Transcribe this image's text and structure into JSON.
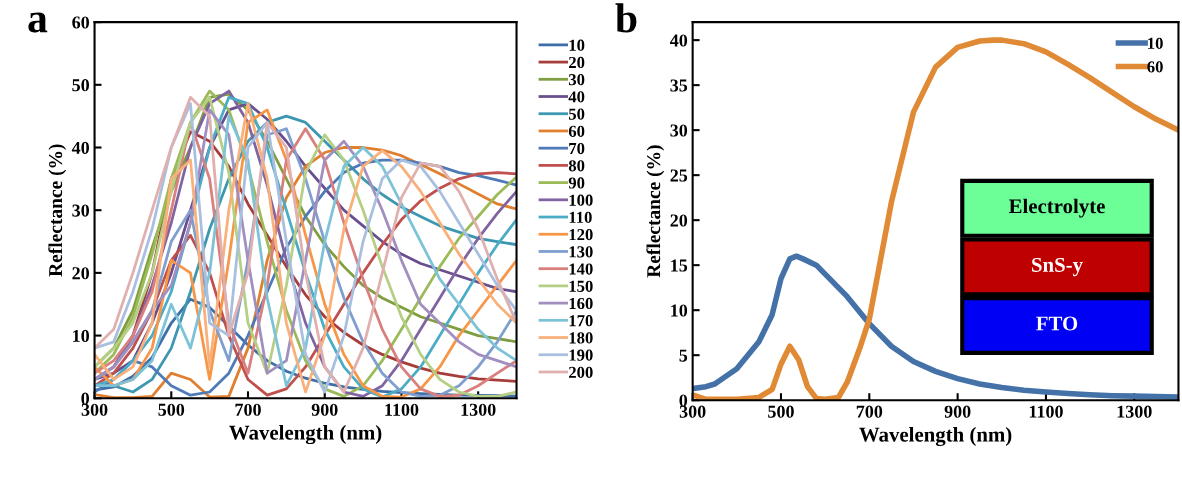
{
  "chart_data": [
    {
      "type": "line",
      "title": "a",
      "xlabel": "Wavelength (nm)",
      "ylabel": "Reflectance (%)",
      "xlim": [
        300,
        1400
      ],
      "xticks": [
        300,
        500,
        700,
        900,
        1100,
        1300
      ],
      "ylim": [
        0,
        60
      ],
      "yticks": [
        0,
        10,
        20,
        30,
        40,
        50,
        60
      ],
      "grid": false,
      "legend": "right",
      "marker": "none",
      "line_style": "solid",
      "x": [
        300,
        350,
        400,
        450,
        500,
        550,
        600,
        650,
        700,
        750,
        800,
        850,
        900,
        950,
        1000,
        1050,
        1100,
        1150,
        1200,
        1250,
        1300,
        1350,
        1400
      ],
      "series": [
        {
          "name": "10",
          "color": "#3f6fa8",
          "values": [
            1.3,
            1.8,
            3.5,
            6.5,
            12,
            15.8,
            14.5,
            11.5,
            8.5,
            6,
            4.3,
            3.2,
            2.4,
            1.8,
            1.4,
            1.1,
            0.9,
            0.75,
            0.6,
            0.5,
            0.45,
            0.4,
            0.35
          ]
        },
        {
          "name": "20",
          "color": "#a63d3a",
          "values": [
            3,
            5,
            10,
            20,
            35,
            42.5,
            41,
            37,
            31,
            26,
            21,
            16.5,
            13,
            10.5,
            8.5,
            7,
            5.8,
            4.8,
            4,
            3.5,
            3.1,
            2.9,
            2.7
          ]
        },
        {
          "name": "30",
          "color": "#7f9e3f",
          "values": [
            5,
            8,
            14,
            24,
            33,
            40,
            48,
            48.5,
            46,
            41,
            35,
            29,
            24.5,
            21,
            18,
            16,
            14.5,
            13,
            12,
            11,
            10,
            9.5,
            9
          ]
        },
        {
          "name": "40",
          "color": "#6a4f8f",
          "values": [
            3,
            4,
            6,
            12,
            20,
            30,
            40,
            46,
            47,
            44.5,
            41,
            37,
            33.5,
            30,
            27.5,
            25,
            23,
            21.5,
            20.5,
            19.5,
            18.5,
            17.5,
            17
          ]
        },
        {
          "name": "50",
          "color": "#3d97b0",
          "values": [
            2,
            2,
            1,
            3,
            8,
            17,
            27,
            35,
            41,
            44,
            45,
            44,
            41,
            38,
            35,
            32.5,
            30.5,
            29,
            27.5,
            26.5,
            25.5,
            25,
            24.5
          ]
        },
        {
          "name": "60",
          "color": "#e07f2e",
          "values": [
            0.6,
            0.1,
            0.1,
            0.3,
            4,
            3,
            0.2,
            0.3,
            8,
            22,
            32,
            37,
            39.2,
            40,
            40,
            39.6,
            38.7,
            37.3,
            35.8,
            34.2,
            32.6,
            31,
            30.2
          ]
        },
        {
          "name": "70",
          "color": "#4f7ab8",
          "values": [
            1,
            3,
            6,
            5,
            2,
            0.5,
            1,
            4,
            10,
            17,
            24,
            29,
            33,
            36,
            37.5,
            38,
            38,
            37.5,
            37,
            36,
            35.5,
            34.8,
            34
          ]
        },
        {
          "name": "80",
          "color": "#c0504d",
          "values": [
            2,
            4,
            8,
            14,
            22,
            26,
            20,
            10,
            3,
            0.5,
            1.5,
            5,
            10,
            15,
            20,
            24.5,
            28.5,
            31.5,
            33.5,
            35,
            35.8,
            36,
            35.8
          ]
        },
        {
          "name": "90",
          "color": "#9bbb59",
          "values": [
            4,
            7,
            13,
            23,
            35,
            44,
            49,
            46,
            37,
            25,
            14,
            6,
            1.5,
            0.3,
            2,
            6,
            11,
            16,
            21,
            25.5,
            29,
            32.5,
            35.3
          ]
        },
        {
          "name": "100",
          "color": "#8064a2",
          "values": [
            3,
            5,
            10,
            18,
            28,
            40,
            47,
            49,
            44,
            34,
            22,
            12,
            5,
            1,
            0.3,
            2,
            6,
            11,
            16,
            21,
            25.5,
            29.5,
            33
          ]
        },
        {
          "name": "110",
          "color": "#4bacc6",
          "values": [
            2,
            3,
            6,
            10,
            17,
            28,
            40,
            48,
            47,
            40,
            30,
            20,
            11,
            5,
            1.5,
            0.2,
            1.5,
            5,
            10,
            15,
            20,
            24.5,
            28.5
          ]
        },
        {
          "name": "120",
          "color": "#f79646",
          "values": [
            5,
            2,
            3,
            8,
            22,
            20,
            3,
            22,
            44,
            46,
            38,
            26,
            15,
            7,
            2,
            0.3,
            0.2,
            1.5,
            5,
            10,
            14,
            18,
            22
          ]
        },
        {
          "name": "130",
          "color": "#7f9fcf",
          "values": [
            3,
            5,
            9,
            14,
            25,
            30,
            14,
            6,
            22,
            42,
            43,
            35,
            25,
            16,
            9,
            4,
            1,
            0.3,
            0.5,
            2,
            5,
            9,
            14
          ]
        },
        {
          "name": "140",
          "color": "#d9807e",
          "values": [
            4,
            6,
            10,
            17,
            30,
            44,
            35,
            12,
            4,
            18,
            38,
            43,
            38,
            28,
            19,
            11,
            5,
            1.5,
            0.3,
            0.5,
            2,
            4,
            6
          ]
        },
        {
          "name": "150",
          "color": "#b5cf85",
          "values": [
            5,
            8,
            12,
            20,
            33,
            44,
            48,
            36,
            12,
            4,
            18,
            36,
            42,
            38,
            30,
            21,
            13,
            7,
            3,
            1,
            0.3,
            0.3,
            1
          ]
        },
        {
          "name": "160",
          "color": "#a08fbf",
          "values": [
            3,
            5,
            9,
            14,
            18,
            28,
            46,
            42,
            22,
            4,
            6,
            22,
            38,
            41,
            37,
            30,
            22,
            15,
            12,
            9,
            7,
            6,
            5
          ]
        },
        {
          "name": "170",
          "color": "#7dc3d8",
          "values": [
            2,
            2,
            3,
            6,
            15,
            8,
            20,
            45,
            38,
            16,
            2,
            8,
            25,
            37,
            40,
            37,
            31,
            25,
            19,
            15,
            11,
            8,
            6
          ]
        },
        {
          "name": "180",
          "color": "#f9b07a",
          "values": [
            7,
            3,
            5,
            12,
            35,
            38,
            5,
            30,
            47,
            35,
            12,
            1,
            10,
            27,
            37,
            39.5,
            37,
            33,
            28,
            23,
            19,
            15,
            12
          ]
        },
        {
          "name": "190",
          "color": "#a9bfe0",
          "values": [
            8,
            9,
            17,
            27,
            40,
            47,
            12,
            10,
            40,
            44,
            25,
            7,
            1,
            10,
            25,
            35,
            38,
            37,
            33,
            28,
            23,
            18,
            14
          ]
        },
        {
          "name": "200",
          "color": "#e0b0ae",
          "values": [
            8,
            11,
            20,
            30,
            40,
            48,
            45,
            10,
            20,
            44,
            40,
            20,
            5,
            1,
            8,
            20,
            32,
            37.5,
            37,
            33,
            27,
            19,
            12
          ]
        }
      ]
    },
    {
      "type": "line",
      "title": "b",
      "xlabel": "Wavelength (nm)",
      "ylabel": "Reflectance (%)",
      "xlim": [
        300,
        1400
      ],
      "xticks": [
        300,
        500,
        700,
        900,
        1100,
        1300
      ],
      "ylim": [
        0,
        42
      ],
      "yticks": [
        0,
        5,
        10,
        15,
        20,
        25,
        30,
        35,
        40
      ],
      "grid": false,
      "legend": "top right",
      "marker": "none",
      "line_style": "solid",
      "annotations": [
        "Electrolyte",
        "SnS-y",
        "FTO"
      ],
      "series": [
        {
          "name": "10",
          "color": "#4472a8",
          "x": [
            300,
            330,
            350,
            400,
            450,
            480,
            500,
            520,
            535,
            550,
            580,
            600,
            650,
            700,
            750,
            800,
            850,
            900,
            950,
            1000,
            1050,
            1100,
            1150,
            1200,
            1250,
            1300,
            1350,
            1400
          ],
          "values": [
            1.3,
            1.5,
            1.8,
            3.5,
            6.5,
            9.5,
            13.5,
            15.7,
            16,
            15.7,
            15,
            14,
            11.5,
            8.5,
            6,
            4.3,
            3.2,
            2.4,
            1.8,
            1.4,
            1.1,
            0.9,
            0.75,
            0.6,
            0.5,
            0.45,
            0.4,
            0.35
          ]
        },
        {
          "name": "60",
          "color": "#e08a36",
          "x": [
            300,
            330,
            350,
            400,
            450,
            480,
            500,
            520,
            540,
            560,
            580,
            600,
            630,
            650,
            680,
            700,
            750,
            800,
            850,
            900,
            950,
            980,
            1000,
            1050,
            1100,
            1150,
            1200,
            1250,
            1300,
            1350,
            1400
          ],
          "values": [
            0.6,
            0.1,
            0.1,
            0.1,
            0.3,
            1.2,
            4,
            6,
            4.5,
            1.5,
            0.2,
            0.1,
            0.3,
            2,
            6,
            9,
            22,
            32,
            37,
            39.2,
            39.9,
            40,
            40,
            39.6,
            38.7,
            37.3,
            35.8,
            34.2,
            32.6,
            31.2,
            30
          ]
        }
      ]
    }
  ]
}
